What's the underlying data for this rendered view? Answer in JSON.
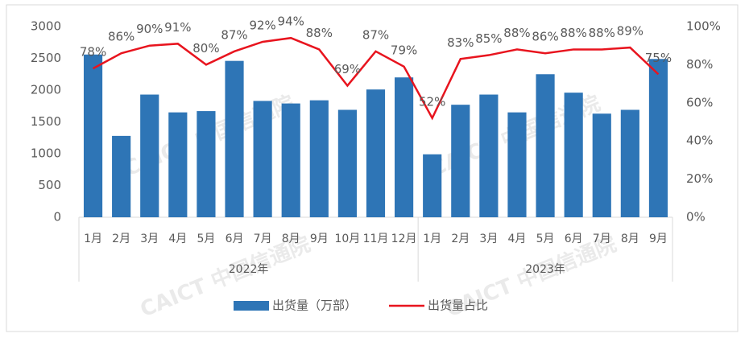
{
  "chart_data": {
    "type": "bar_line",
    "category_groups": [
      {
        "label": "2022年",
        "categories": [
          "1月",
          "2月",
          "3月",
          "4月",
          "5月",
          "6月",
          "7月",
          "8月",
          "9月",
          "10月",
          "11月",
          "12月"
        ]
      },
      {
        "label": "2023年",
        "categories": [
          "1月",
          "2月",
          "3月",
          "4月",
          "5月",
          "6月",
          "7月",
          "8月",
          "9月"
        ]
      }
    ],
    "series": [
      {
        "name": "出货量（万部）",
        "type": "bar",
        "color": "#2e75b6",
        "values": [
          2560,
          1280,
          1930,
          1650,
          1670,
          2460,
          1830,
          1790,
          1840,
          1690,
          2010,
          2200,
          990,
          1770,
          1930,
          1650,
          2250,
          1960,
          1630,
          1690,
          2490
        ]
      },
      {
        "name": "出货量占比",
        "type": "line",
        "axis": "y2",
        "color": "#e8141e",
        "values": [
          78,
          86,
          90,
          91,
          80,
          87,
          92,
          94,
          88,
          69,
          87,
          79,
          52,
          83,
          85,
          88,
          86,
          88,
          88,
          89,
          75
        ],
        "value_labels": [
          "78%",
          "86%",
          "90%",
          "91%",
          "80%",
          "87%",
          "92%",
          "94%",
          "88%",
          "69%",
          "87%",
          "79%",
          "52%",
          "83%",
          "85%",
          "88%",
          "86%",
          "88%",
          "88%",
          "89%",
          "75%"
        ]
      }
    ],
    "ylim": [
      0,
      3000
    ],
    "yticks": [
      0,
      500,
      1000,
      1500,
      2000,
      2500,
      3000
    ],
    "y2lim": [
      0,
      100
    ],
    "y2ticks": [
      {
        "value": 0,
        "label": "0%"
      },
      {
        "value": 20,
        "label": "20%"
      },
      {
        "value": 40,
        "label": "40%"
      },
      {
        "value": 60,
        "label": "60%"
      },
      {
        "value": 80,
        "label": "80%"
      },
      {
        "value": 100,
        "label": "100%"
      }
    ],
    "legend": "bottom",
    "watermark": "CAICT 中国信通院"
  }
}
